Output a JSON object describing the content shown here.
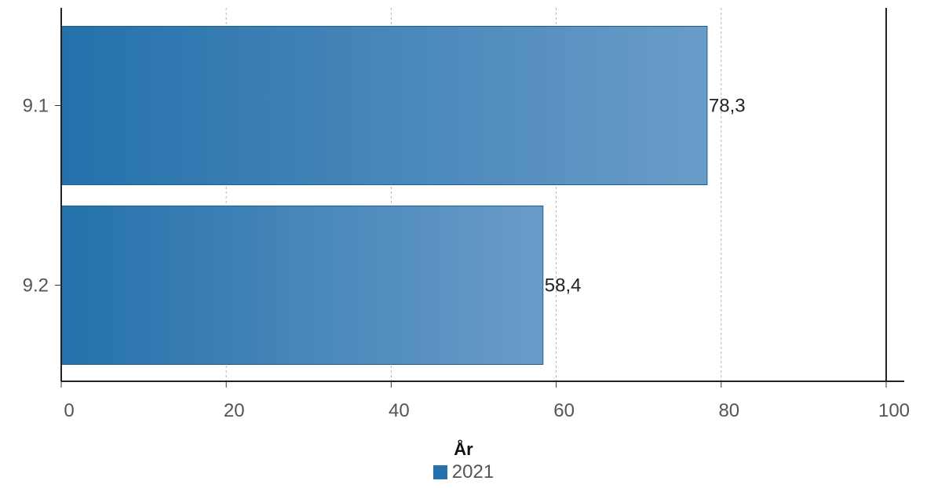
{
  "chart_data": {
    "type": "bar",
    "orientation": "horizontal",
    "categories": [
      "9.1",
      "9.2"
    ],
    "series": [
      {
        "name": "2021",
        "values": [
          78.3,
          58.4
        ]
      }
    ],
    "value_labels": [
      "78,3",
      "58,4"
    ],
    "xlim": [
      0,
      100
    ],
    "x_ticks": [
      0,
      20,
      40,
      60,
      80,
      100
    ],
    "grid": "vertical dashed",
    "legend": {
      "title": "År",
      "position": "bottom-center"
    },
    "colors": {
      "bar_start": "#2471ab",
      "bar_end": "#6a9cc8",
      "bar_stroke": "#1d5f91",
      "legend_swatch": "#2471ab"
    }
  }
}
